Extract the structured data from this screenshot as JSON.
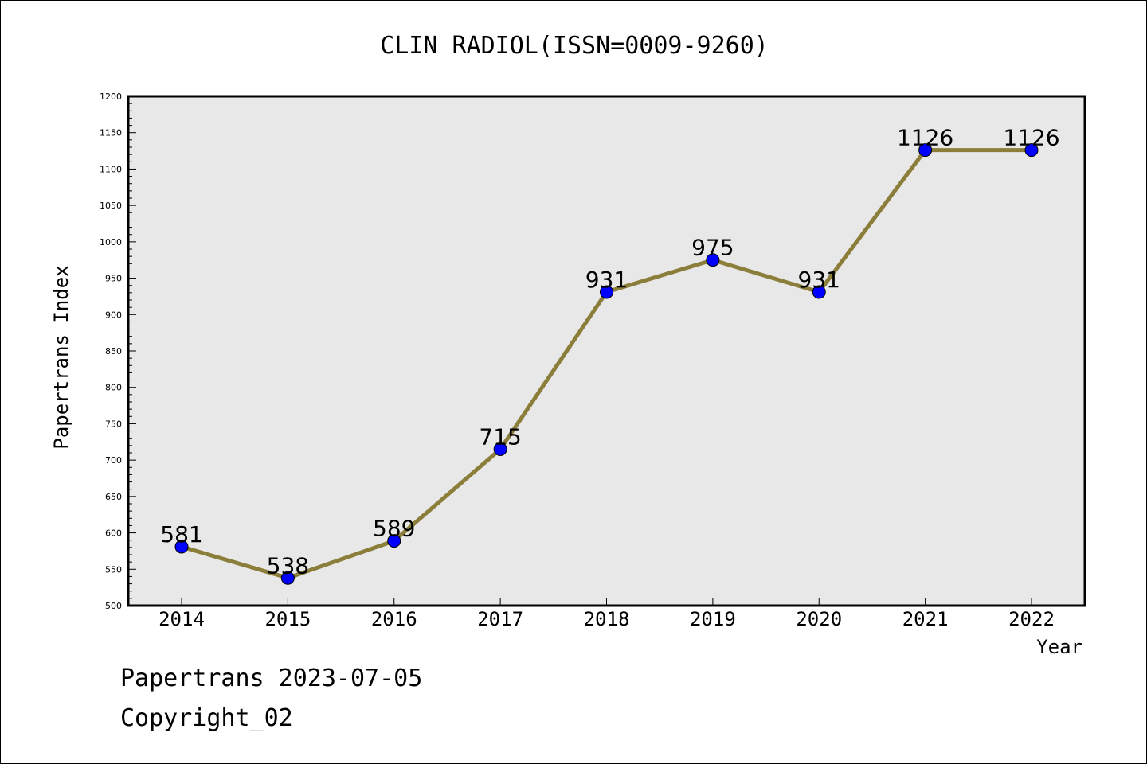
{
  "chart_data": {
    "type": "line",
    "title": "CLIN RADIOL(ISSN=0009-9260)",
    "xlabel": "Year",
    "ylabel": "Papertrans Index",
    "categories": [
      "2014",
      "2015",
      "2016",
      "2017",
      "2018",
      "2019",
      "2020",
      "2021",
      "2022"
    ],
    "values": [
      581,
      538,
      589,
      715,
      931,
      975,
      931,
      1126,
      1126
    ],
    "data_labels": [
      "581",
      "538",
      "589",
      "715",
      "931",
      "975",
      "931",
      "1126",
      "1126"
    ],
    "ylim": [
      500,
      1200
    ],
    "yticks": [
      "500",
      "550",
      "600",
      "650",
      "700",
      "750",
      "800",
      "850",
      "900",
      "950",
      "1000",
      "1050",
      "1100",
      "1150",
      "1200"
    ],
    "grid": false,
    "colors": {
      "line": "#8b7d3a",
      "marker": "#0000ff",
      "plot_background": "#e8e8e8"
    }
  },
  "footer": {
    "line1": "Papertrans 2023-07-05",
    "line2": "Copyright_02"
  }
}
